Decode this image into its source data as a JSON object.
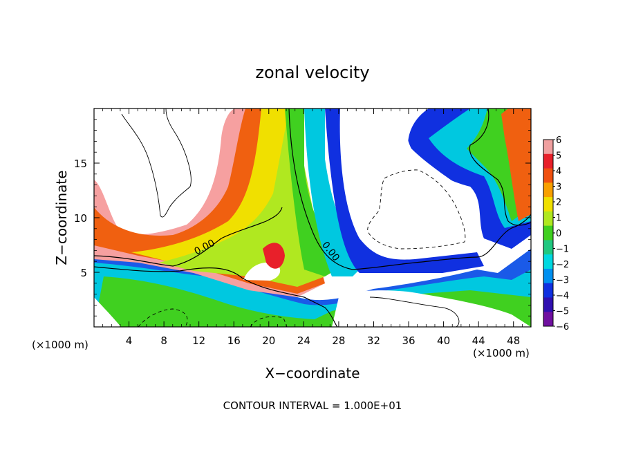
{
  "chart_data": {
    "type": "heatmap",
    "title": "zonal velocity",
    "xlabel": "X−coordinate",
    "ylabel": "Z−coordinate",
    "x_unit_left": "(×1000 m)",
    "x_unit_right": "(×1000 m)",
    "footer": "CONTOUR INTERVAL = 1.000E+01",
    "xlim": [
      0,
      50
    ],
    "ylim": [
      0,
      20
    ],
    "x_ticks": [
      4,
      8,
      12,
      16,
      20,
      24,
      28,
      32,
      36,
      40,
      44,
      48
    ],
    "y_ticks": [
      5,
      10,
      15
    ],
    "x_tick_labels": [
      "4",
      "8",
      "12",
      "16",
      "20",
      "24",
      "28",
      "32",
      "36",
      "40",
      "44",
      "48"
    ],
    "y_tick_labels": [
      "5",
      "10",
      "15"
    ],
    "colorbar": {
      "ticks": [
        6,
        5,
        4,
        3,
        2,
        1,
        0,
        -1,
        -2,
        -3,
        -4,
        -5,
        -6
      ],
      "tick_labels": [
        "6",
        "5",
        "4",
        "3",
        "2",
        "1",
        "0",
        "−1",
        "−2",
        "−3",
        "−4",
        "−5",
        "−6"
      ],
      "range": [
        -6,
        6
      ],
      "colors": [
        "#f0a0a0",
        "#e8202a",
        "#f05010",
        "#f8a000",
        "#f0e000",
        "#b0e820",
        "#40d020",
        "#20c880",
        "#00d8e0",
        "#0090f0",
        "#1030e0",
        "#3010b0",
        "#7010a0"
      ]
    },
    "contour_labels": [
      "0.00",
      "0.00"
    ],
    "contour_label_positions": [
      [
        15.5,
        7.4
      ],
      [
        26.5,
        7.2
      ]
    ]
  }
}
